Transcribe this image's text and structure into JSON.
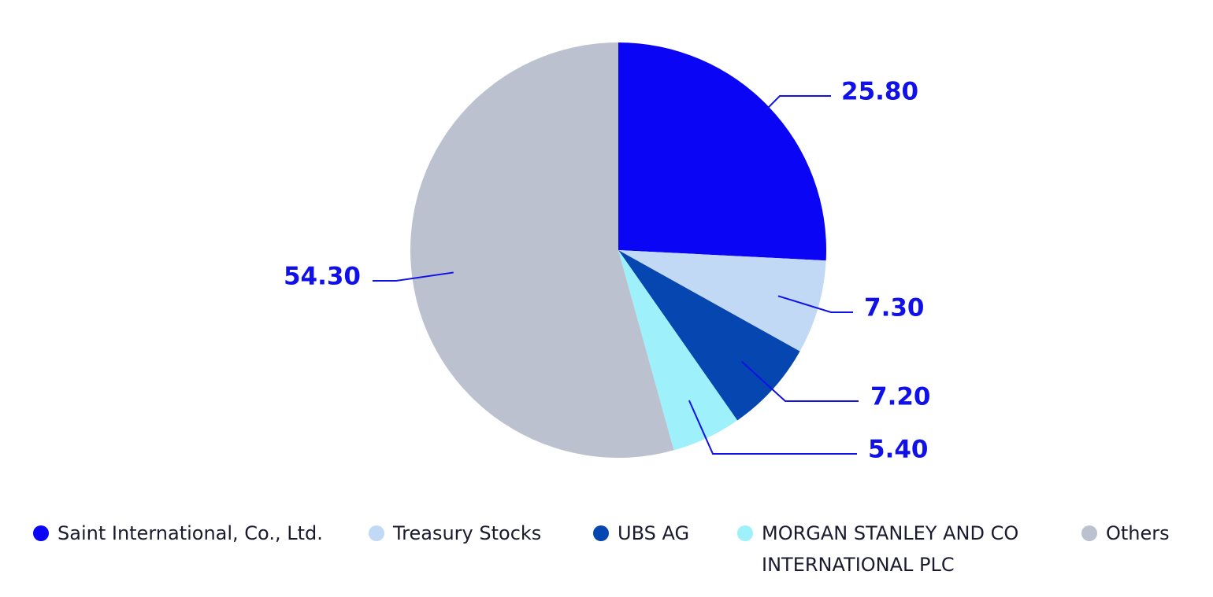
{
  "chart_data": {
    "type": "pie",
    "categories": [
      "Saint International, Co., Ltd.",
      "Treasury Stocks",
      "UBS AG",
      "MORGAN STANLEY AND CO INTERNATIONAL PLC",
      "Others"
    ],
    "values": [
      25.8,
      7.3,
      7.2,
      5.4,
      54.3
    ],
    "value_labels": [
      "25.80",
      "7.30",
      "7.20",
      "5.40",
      "54.30"
    ],
    "colors": [
      "#0a05f5",
      "#c2d9f5",
      "#0646b0",
      "#9ef0fa",
      "#bcc1d0"
    ],
    "legend": "bottom"
  }
}
